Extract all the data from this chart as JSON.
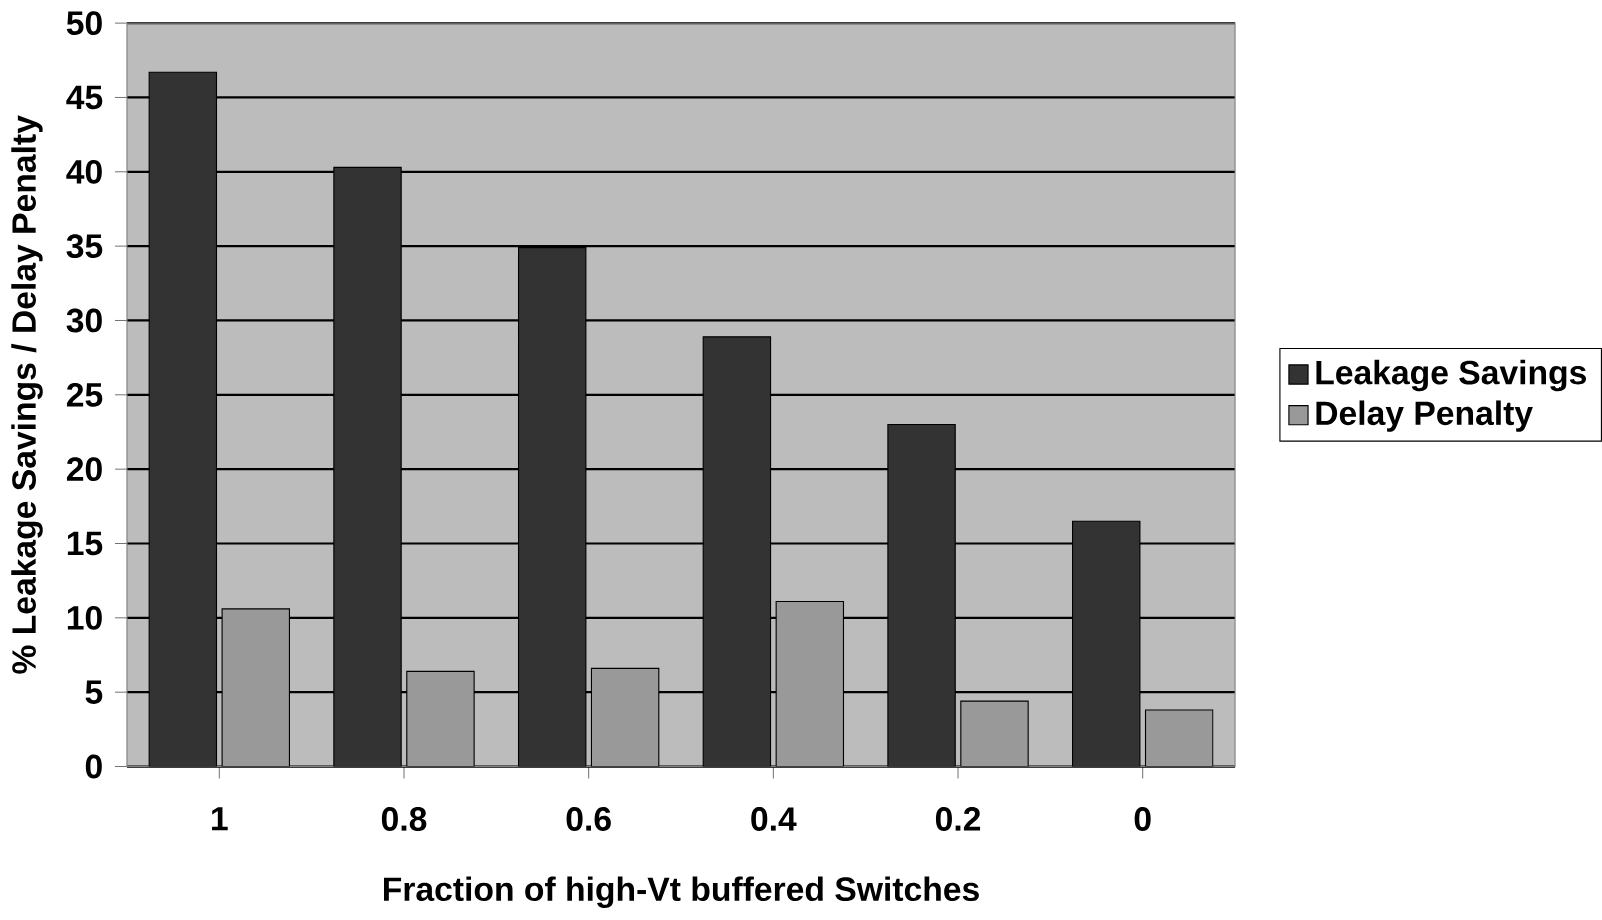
{
  "chart_data": {
    "type": "bar",
    "xlabel": "Fraction of high-Vt buffered Switches",
    "ylabel": "% Leakage Savings / Delay Penalty",
    "categories": [
      "1",
      "0.8",
      "0.6",
      "0.4",
      "0.2",
      "0"
    ],
    "series": [
      {
        "name": "Leakage Savings",
        "color": "#333333",
        "values": [
          46.7,
          40.3,
          34.9,
          28.9,
          23.0,
          16.5
        ]
      },
      {
        "name": "Delay Penalty",
        "color": "#999999",
        "values": [
          10.6,
          6.4,
          6.6,
          11.1,
          4.4,
          3.8
        ]
      }
    ],
    "ylim": [
      0,
      50
    ],
    "yticks": [
      0,
      5,
      10,
      15,
      20,
      25,
      30,
      35,
      40,
      45,
      50
    ],
    "grid": "y",
    "legend": "right"
  }
}
